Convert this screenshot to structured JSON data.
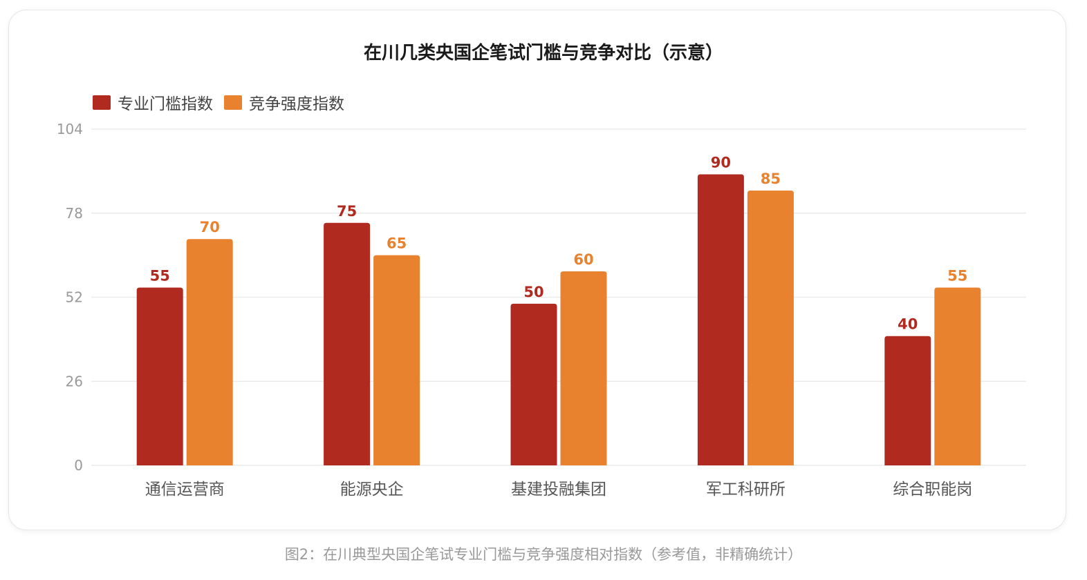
{
  "chart_data": {
    "type": "bar",
    "title": "在川几类央国企笔试门槛与竞争对比（示意）",
    "categories": [
      "通信运营商",
      "能源央企",
      "基建投融集团",
      "军工科研所",
      "综合职能岗"
    ],
    "series": [
      {
        "name": "专业门槛指数",
        "values": [
          55,
          75,
          50,
          90,
          40
        ],
        "color": "#b02a20"
      },
      {
        "name": "竞争强度指数",
        "values": [
          70,
          65,
          60,
          85,
          55
        ],
        "color": "#e8822f"
      }
    ],
    "y_ticks": [
      0,
      26,
      52,
      78,
      104
    ],
    "ylim": [
      0,
      104
    ],
    "grid": true,
    "legend_position": "top-left",
    "xlabel": "",
    "ylabel": ""
  },
  "caption": "图2：在川典型央国企笔试专业门槛与竞争强度相对指数（参考值，非精确统计）"
}
